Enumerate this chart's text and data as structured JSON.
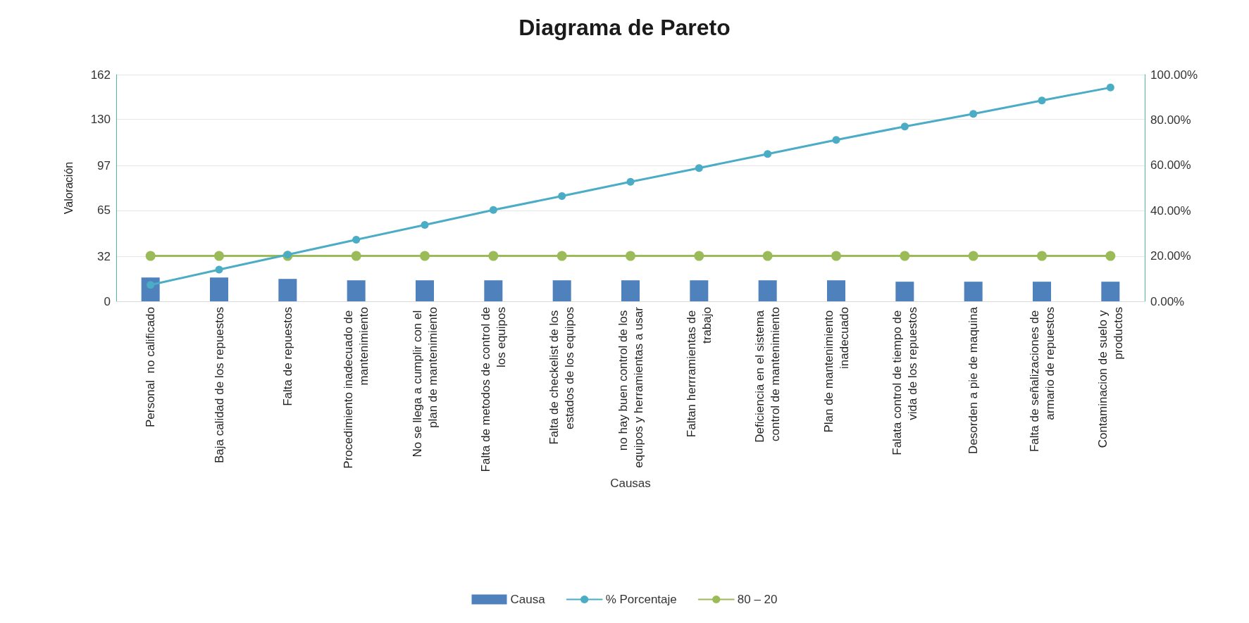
{
  "chart_data": {
    "type": "bar",
    "title": "Diagrama de Pareto",
    "xlabel": "Causas",
    "ylabel": "Valoración",
    "categories": [
      "Personal  no calificado",
      "Baja calidad de los repuestos",
      "Falta de repuestos",
      "Procedimiento inadecuado de mantenimiento",
      "No se llega a cumplir con el plan de mantenimiento",
      "Falta de metodos de control de los equipos",
      "Falta de checkelist de los estados de los equipos",
      "no hay buen control de los equipos y herramientas a usar",
      "Faltan herrramientas de trabajo",
      "Deficiencia en el sistema control de mantenimiento",
      "Plan de mantenimiento inadecuado",
      "Falata control de tiempo de vida de los repuestos",
      "Desorden a pie de maquina",
      "Falta de señalizaciones de armario de repuestos",
      "Contaminacion de suelo y productos"
    ],
    "series": [
      {
        "name": "Causa",
        "color": "#4f81bd",
        "values": [
          17,
          17,
          16,
          15,
          15,
          15,
          15,
          15,
          15,
          15,
          15,
          14,
          14,
          14,
          14
        ]
      },
      {
        "name": "% Porcentaje",
        "type": "line",
        "axis": "y2",
        "color": "#4bacc6",
        "values": [
          7.2,
          14.0,
          20.6,
          27.2,
          33.7,
          40.3,
          46.4,
          52.7,
          58.8,
          65.0,
          71.2,
          77.1,
          82.7,
          88.6,
          94.3
        ]
      },
      {
        "name": "80 – 20",
        "type": "line",
        "axis": "y2",
        "color": "#9bbb59",
        "values": [
          20,
          20,
          20,
          20,
          20,
          20,
          20,
          20,
          20,
          20,
          20,
          20,
          20,
          20,
          20
        ]
      }
    ],
    "ylim": [
      0,
      162
    ],
    "yticks": [
      0,
      32,
      65,
      97,
      130,
      162
    ],
    "y2lim": [
      0,
      100
    ],
    "y2ticks": [
      {
        "value": 0,
        "label": "0.00%"
      },
      {
        "value": 20,
        "label": "20.00%"
      },
      {
        "value": 40,
        "label": "40.00%"
      },
      {
        "value": 60,
        "label": "60.00%"
      },
      {
        "value": 80,
        "label": "80.00%"
      },
      {
        "value": 100,
        "label": "100.00%"
      }
    ],
    "grid": "y",
    "legend": "bottom",
    "marker": "circle",
    "line_style": "solid"
  }
}
